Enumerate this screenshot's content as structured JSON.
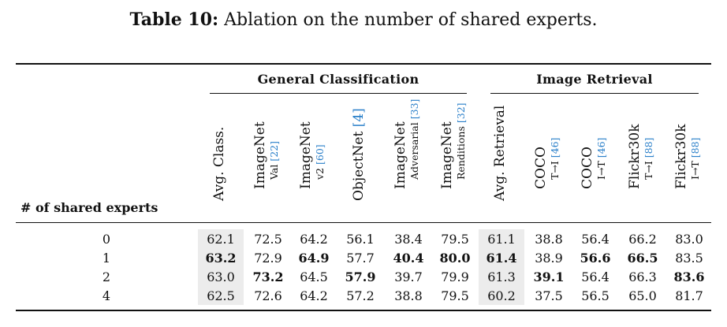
{
  "caption": {
    "label": "Table 10:",
    "text": " Ablation on the number of shared experts."
  },
  "groups": {
    "classification": "General Classification",
    "retrieval": "Image Retrieval"
  },
  "row_header": "# of shared experts",
  "columns": [
    {
      "line1": "Avg. Class.",
      "line2": "",
      "cite": ""
    },
    {
      "line1": "ImageNet",
      "line2": "Val ",
      "cite": "[22]"
    },
    {
      "line1": "ImageNet",
      "line2": "v2 ",
      "cite": "[60]"
    },
    {
      "line1": "ObjectNet ",
      "line2": "",
      "cite": "[4]"
    },
    {
      "line1": "ImageNet",
      "line2": "Adversarial ",
      "cite": "[33]"
    },
    {
      "line1": "ImageNet",
      "line2": "Renditions ",
      "cite": "[32]"
    },
    {
      "line1": "Avg. Retrieval",
      "line2": "",
      "cite": ""
    },
    {
      "line1": "COCO",
      "line2": "T→I ",
      "cite": "[46]"
    },
    {
      "line1": "COCO",
      "line2": "I→T ",
      "cite": "[46]"
    },
    {
      "line1": "Flickr30k",
      "line2": "T→I ",
      "cite": "[88]"
    },
    {
      "line1": "Flickr30k",
      "line2": "I→T ",
      "cite": "[88]"
    }
  ],
  "rows": [
    {
      "label": "0",
      "values": [
        "62.1",
        "72.5",
        "64.2",
        "56.1",
        "38.4",
        "79.5",
        "61.1",
        "38.8",
        "56.4",
        "66.2",
        "83.0"
      ],
      "bold": []
    },
    {
      "label": "1",
      "values": [
        "63.2",
        "72.9",
        "64.9",
        "57.7",
        "40.4",
        "80.0",
        "61.4",
        "38.9",
        "56.6",
        "66.5",
        "83.5"
      ],
      "bold": [
        0,
        2,
        4,
        5,
        6,
        8,
        9
      ]
    },
    {
      "label": "2",
      "values": [
        "63.0",
        "73.2",
        "64.5",
        "57.9",
        "39.7",
        "79.9",
        "61.3",
        "39.1",
        "56.4",
        "66.3",
        "83.6"
      ],
      "bold": [
        1,
        3,
        7,
        10
      ]
    },
    {
      "label": "4",
      "values": [
        "62.5",
        "72.6",
        "64.2",
        "57.2",
        "38.8",
        "79.5",
        "60.2",
        "37.5",
        "56.5",
        "65.0",
        "81.7"
      ],
      "bold": []
    }
  ]
}
